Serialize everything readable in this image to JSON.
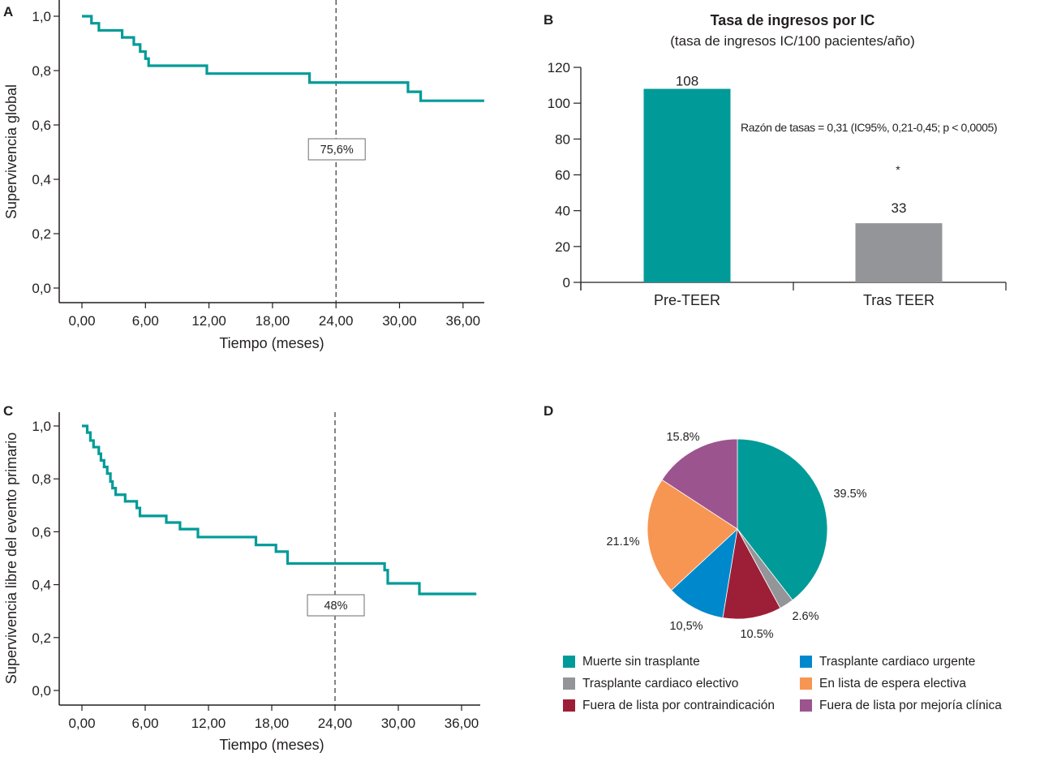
{
  "chart_data": [
    {
      "panel": "A",
      "type": "line",
      "subtype": "kaplan-meier-step",
      "ylabel": "Supervivencia global",
      "xlabel": "Tiempo (meses)",
      "xlim": [
        -2,
        38
      ],
      "ylim": [
        -0.05,
        1.03
      ],
      "xticks": [
        0,
        6,
        12,
        18,
        24,
        30,
        36
      ],
      "xtick_labels": [
        "0,00",
        "6,00",
        "12,00",
        "18,00",
        "24,00",
        "30,00",
        "36,00"
      ],
      "yticks": [
        0,
        0.2,
        0.4,
        0.6,
        0.8,
        1.0
      ],
      "ytick_labels": [
        "0,0",
        "0,2",
        "0,4",
        "0,6",
        "0,8",
        "1,0"
      ],
      "color": "#009b98",
      "steps": [
        [
          0,
          1.0
        ],
        [
          0.9,
          0.974
        ],
        [
          1.6,
          0.948
        ],
        [
          3.8,
          0.922
        ],
        [
          4.9,
          0.896
        ],
        [
          5.5,
          0.87
        ],
        [
          6.0,
          0.844
        ],
        [
          6.3,
          0.818
        ],
        [
          11.8,
          0.789
        ],
        [
          21.5,
          0.756
        ],
        [
          30.8,
          0.722
        ],
        [
          32.0,
          0.689
        ],
        [
          38.0,
          0.689
        ]
      ],
      "reference_line_x": 24,
      "annotation": "75,6%",
      "grid": false
    },
    {
      "panel": "B",
      "type": "bar",
      "title": "Tasa de ingresos por IC",
      "subtitle": "(tasa de ingresos IC/100 pacientes/año)",
      "categories": [
        "Pre-TEER",
        "Tras TEER"
      ],
      "values": [
        108,
        33
      ],
      "value_labels": [
        "108",
        "33"
      ],
      "colors": [
        "#009b98",
        "#939598"
      ],
      "ylim": [
        0,
        120
      ],
      "yticks": [
        0,
        20,
        40,
        60,
        80,
        100,
        120
      ],
      "ytick_labels": [
        "0",
        "20",
        "40",
        "60",
        "80",
        "100",
        "120"
      ],
      "annotation": "Razón de tasas = 0,31 (IC95%, 0,21-0,45; p < 0,0005)",
      "significance_marker": "*",
      "xlabel": "",
      "ylabel": "",
      "grid": false
    },
    {
      "panel": "C",
      "type": "line",
      "subtype": "kaplan-meier-step",
      "ylabel": "Supervivencia libre del evento primario",
      "xlabel": "Tiempo (meses)",
      "xlim": [
        -2,
        38
      ],
      "ylim": [
        -0.05,
        1.03
      ],
      "xticks": [
        0,
        6,
        12,
        18,
        24,
        30,
        36
      ],
      "xtick_labels": [
        "0,00",
        "6,00",
        "12,00",
        "18,00",
        "24,00",
        "30,00",
        "36,00"
      ],
      "yticks": [
        0,
        0.2,
        0.4,
        0.6,
        0.8,
        1.0
      ],
      "ytick_labels": [
        "0,0",
        "0,2",
        "0,4",
        "0,6",
        "0,8",
        "1,0"
      ],
      "color": "#009b98",
      "steps": [
        [
          0,
          1.0
        ],
        [
          0.5,
          0.975
        ],
        [
          0.8,
          0.945
        ],
        [
          1.1,
          0.92
        ],
        [
          1.6,
          0.895
        ],
        [
          1.8,
          0.87
        ],
        [
          2.1,
          0.845
        ],
        [
          2.4,
          0.82
        ],
        [
          2.7,
          0.79
        ],
        [
          2.9,
          0.765
        ],
        [
          3.2,
          0.74
        ],
        [
          4.1,
          0.715
        ],
        [
          5.2,
          0.69
        ],
        [
          5.5,
          0.66
        ],
        [
          8.0,
          0.635
        ],
        [
          9.3,
          0.61
        ],
        [
          11.0,
          0.58
        ],
        [
          16.5,
          0.55
        ],
        [
          18.4,
          0.525
        ],
        [
          19.5,
          0.48
        ],
        [
          28.7,
          0.455
        ],
        [
          29.0,
          0.405
        ],
        [
          32.0,
          0.365
        ],
        [
          37.4,
          0.365
        ]
      ],
      "reference_line_x": 24,
      "annotation": "48%",
      "grid": false
    },
    {
      "panel": "D",
      "type": "pie",
      "start": "top",
      "direction": "clockwise",
      "slices": [
        {
          "label": "Muerte sin trasplante",
          "value": 39.5,
          "value_label": "39.5%",
          "color": "#009b98"
        },
        {
          "label": "Trasplante cardiaco electivo",
          "value": 2.6,
          "value_label": "2.6%",
          "color": "#939598"
        },
        {
          "label": "Fuera de lista por contraindicación",
          "value": 10.5,
          "value_label": "10.5%",
          "color": "#9c1f37"
        },
        {
          "label": "Trasplante cardiaco urgente",
          "value": 10.5,
          "value_label": "10,5%",
          "color": "#0088cc"
        },
        {
          "label": "En lista de espera electiva",
          "value": 21.1,
          "value_label": "21.1%",
          "color": "#f79552"
        },
        {
          "label": "Fuera de lista por mejoría clínica",
          "value": 15.8,
          "value_label": "15.8%",
          "color": "#9c548e"
        }
      ],
      "legend_placement": "bottom",
      "legend_order": [
        "Muerte sin trasplante",
        "Trasplante cardiaco urgente",
        "Trasplante cardiaco electivo",
        "En lista de espera electiva",
        "Fuera de lista por contraindicación",
        "Fuera de lista por mejoría clínica"
      ]
    }
  ],
  "panels": {
    "a": {
      "letter": "A"
    },
    "b": {
      "letter": "B"
    },
    "c": {
      "letter": "C"
    },
    "d": {
      "letter": "D"
    }
  }
}
